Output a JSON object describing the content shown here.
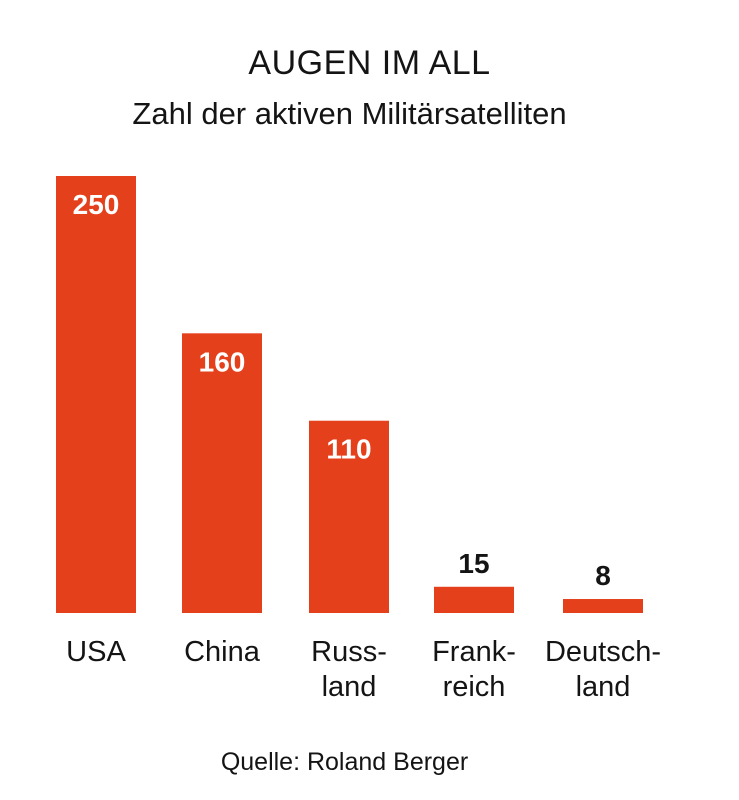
{
  "header": {
    "title": "AUGEN IM ALL",
    "subtitle": "Zahl der aktiven Militärsatelliten"
  },
  "footer": {
    "source": "Quelle: Roland Berger"
  },
  "colors": {
    "bar": "#e5401c",
    "value_text_inside": "#ffffff",
    "value_text_outside": "#141414",
    "text": "#141414"
  },
  "chart_data": {
    "type": "bar",
    "title": "AUGEN IM ALL",
    "subtitle": "Zahl der aktiven Militärsatelliten",
    "xlabel": "",
    "ylabel": "",
    "categories": [
      "USA",
      "China",
      "Russland",
      "Frankreich",
      "Deutschland"
    ],
    "category_lines": [
      [
        "USA"
      ],
      [
        "China"
      ],
      [
        "Russ-",
        "land"
      ],
      [
        "Frank-",
        "reich"
      ],
      [
        "Deutsch-",
        "land"
      ]
    ],
    "values": [
      250,
      160,
      110,
      15,
      8
    ],
    "value_labels": [
      "250",
      "160",
      "110",
      "15",
      "8"
    ],
    "ylim": [
      0,
      250
    ],
    "grid": false,
    "legend": "none",
    "source": "Quelle: Roland Berger"
  }
}
